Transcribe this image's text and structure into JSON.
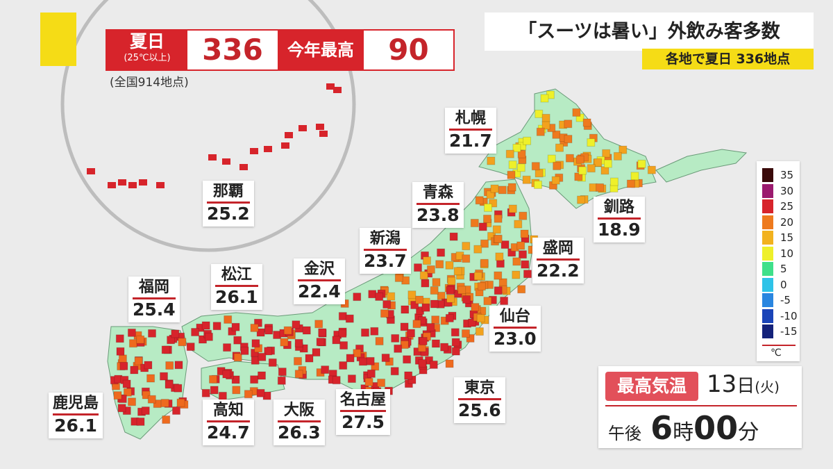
{
  "header": {
    "badge_label": "夏日",
    "badge_sub": "(25℃以上)",
    "count": "336",
    "record_label": "今年最高",
    "record_value": "90",
    "note": "(全国914地点)"
  },
  "headline": {
    "title": "「スーツは暑い」外飲み客多数",
    "subtitle": "各地で夏日 336地点"
  },
  "cities": [
    {
      "name": "那覇",
      "temp": "25.2"
    },
    {
      "name": "札幌",
      "temp": "21.7"
    },
    {
      "name": "青森",
      "temp": "23.8"
    },
    {
      "name": "釧路",
      "temp": "18.9"
    },
    {
      "name": "新潟",
      "temp": "23.7"
    },
    {
      "name": "盛岡",
      "temp": "22.2"
    },
    {
      "name": "金沢",
      "temp": "22.4"
    },
    {
      "name": "松江",
      "temp": "26.1"
    },
    {
      "name": "福岡",
      "temp": "25.4"
    },
    {
      "name": "仙台",
      "temp": "23.0"
    },
    {
      "name": "鹿児島",
      "temp": "26.1"
    },
    {
      "name": "高知",
      "temp": "24.7"
    },
    {
      "name": "大阪",
      "temp": "26.3"
    },
    {
      "name": "名古屋",
      "temp": "27.5"
    },
    {
      "name": "東京",
      "temp": "25.6"
    }
  ],
  "legend": {
    "labels": [
      "35",
      "30",
      "25",
      "20",
      "15",
      "10",
      "5",
      "0",
      "-5",
      "-10",
      "-15"
    ],
    "unit": "℃"
  },
  "time": {
    "label": "最高気温",
    "day": "13",
    "day_unit": "日",
    "weekday": "(火)",
    "ampm": "午後",
    "hour": "6",
    "hour_unit": "時",
    "minute": "00",
    "minute_unit": "分"
  }
}
